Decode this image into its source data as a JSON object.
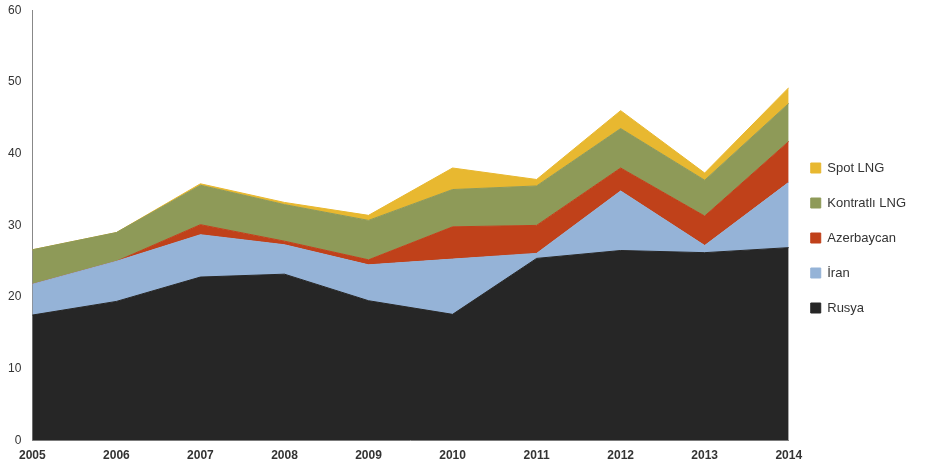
{
  "chart_data": {
    "type": "area",
    "stacked": true,
    "grid": false,
    "legend": "right",
    "categories": [
      "2005",
      "2006",
      "2007",
      "2008",
      "2009",
      "2010",
      "2011",
      "2012",
      "2013",
      "2014"
    ],
    "ylim": [
      0,
      60
    ],
    "yticks": [
      0,
      10,
      20,
      30,
      40,
      50,
      60
    ],
    "series": [
      {
        "name": "Rusya",
        "color": "#262626",
        "values": [
          17.5,
          19.4,
          22.8,
          23.2,
          19.5,
          17.6,
          25.4,
          26.5,
          26.2,
          26.9
        ]
      },
      {
        "name": "İran",
        "color": "#95b3d7",
        "values": [
          4.3,
          5.6,
          5.9,
          4.1,
          5.0,
          7.7,
          0.7,
          8.3,
          1.0,
          9.1
        ]
      },
      {
        "name": "Azerbaycan",
        "color": "#c0411a",
        "values": [
          0,
          0,
          1.4,
          0.5,
          0.7,
          4.5,
          3.9,
          3.2,
          4.1,
          5.7
        ]
      },
      {
        "name": "Kontratlı LNG",
        "color": "#8e9a58",
        "values": [
          4.8,
          4.0,
          5.5,
          5.1,
          5.5,
          5.2,
          5.5,
          5.5,
          5.0,
          5.3
        ]
      },
      {
        "name": "Spot LNG",
        "color": "#e8b830",
        "values": [
          0,
          0,
          0.2,
          0.3,
          0.7,
          3.0,
          0.9,
          2.5,
          1.0,
          2.2
        ]
      }
    ]
  }
}
